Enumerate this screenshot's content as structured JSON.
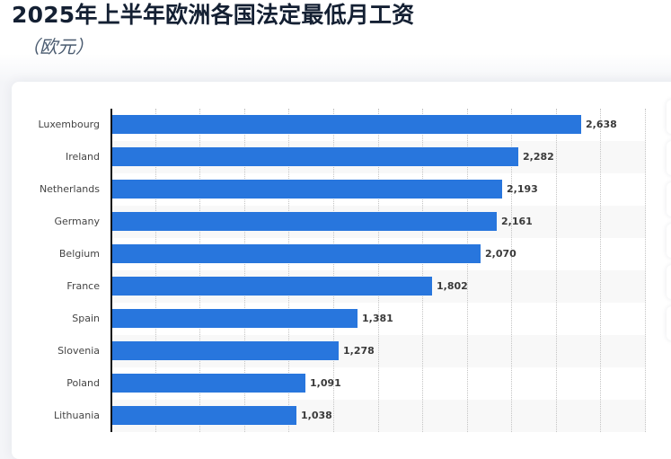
{
  "header": {
    "title": "2025年上半年欧洲各国法定最低月工资",
    "subtitle": "（欧元）"
  },
  "side_buttons": [
    {
      "name": "side-button-1"
    },
    {
      "name": "side-button-2"
    },
    {
      "name": "side-button-3"
    },
    {
      "name": "side-button-4"
    },
    {
      "name": "side-button-5"
    },
    {
      "name": "side-button-6"
    }
  ],
  "colors": {
    "bar": "#2876dd",
    "stripe": "#f8f8f8",
    "title": "#142033"
  },
  "chart_data": {
    "type": "bar",
    "orientation": "horizontal",
    "title": "2025年上半年欧洲各国法定最低月工资",
    "subtitle": "（欧元）",
    "xlabel": "",
    "ylabel": "",
    "categories": [
      "Luxembourg",
      "Ireland",
      "Netherlands",
      "Germany",
      "Belgium",
      "France",
      "Spain",
      "Slovenia",
      "Poland",
      "Lithuania"
    ],
    "values": [
      2638,
      2282,
      2193,
      2161,
      2070,
      1802,
      1381,
      1278,
      1091,
      1038
    ],
    "value_labels": [
      "2,638",
      "2,282",
      "2,193",
      "2,161",
      "2,070",
      "1,802",
      "1,381",
      "1,278",
      "1,091",
      "1,038"
    ],
    "xlim": [
      0,
      3000
    ],
    "grid": true,
    "grid_step": 250,
    "legend": "none"
  }
}
